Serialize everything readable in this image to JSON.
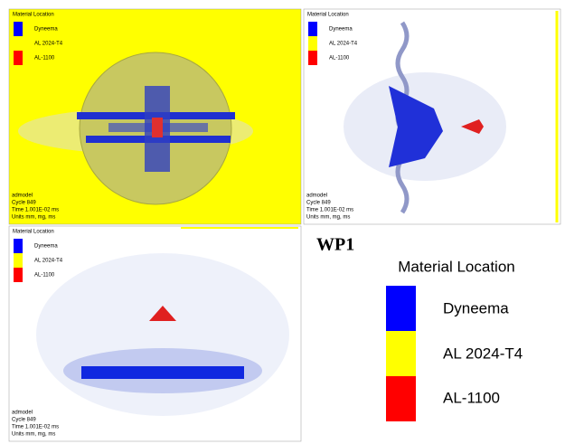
{
  "panels": [
    {
      "legend": {
        "title": "Material Location",
        "items": [
          "Dyneema",
          "AL 2024-T4",
          "AL-1100"
        ]
      },
      "footer": [
        "admodel",
        "Cycle 849",
        "Time 1.001E-02 ms",
        "Units mm, mg, ms"
      ]
    },
    {
      "legend": {
        "title": "Material Location",
        "items": [
          "Dyneema",
          "AL 2024-T4",
          "AL-1100"
        ]
      },
      "footer": [
        "admodel",
        "Cycle 849",
        "Time 1.001E-02 ms",
        "Units mm, mg, ms"
      ]
    },
    {
      "legend": {
        "title": "Material Location",
        "items": [
          "Dyneema",
          "AL 2024-T4",
          "AL-1100"
        ]
      },
      "footer": [
        "admodel",
        "Cycle 849",
        "Time 1.001E-02 ms",
        "Units mm, mg, ms"
      ]
    }
  ],
  "label": "WP1",
  "legend": {
    "title": "Material Location",
    "items": [
      "Dyneema",
      "AL 2024-T4",
      "AL-1100"
    ]
  }
}
